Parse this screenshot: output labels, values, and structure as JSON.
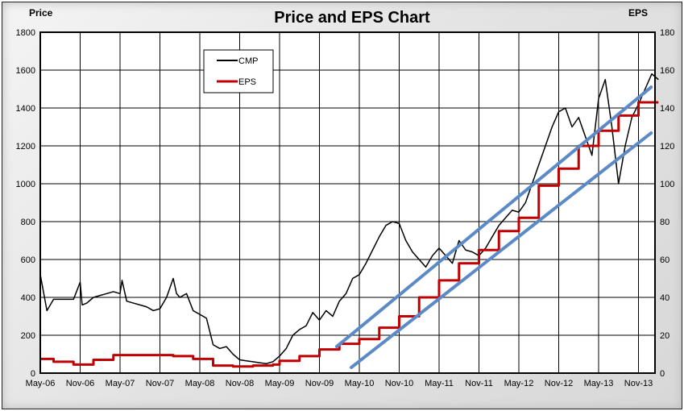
{
  "chart_data": {
    "type": "line",
    "title": "Price and EPS Chart",
    "ylabel_left": "Price",
    "ylabel_right": "EPS",
    "ylim_left": [
      0,
      1800
    ],
    "ylim_right": [
      0,
      180
    ],
    "yticks_left": [
      "0",
      "200",
      "400",
      "600",
      "800",
      "1000",
      "1200",
      "1400",
      "1600",
      "1800"
    ],
    "yticks_right": [
      "0",
      "20",
      "40",
      "60",
      "80",
      "100",
      "120",
      "140",
      "160",
      "180"
    ],
    "xticks": [
      "May-06",
      "Nov-06",
      "May-07",
      "Nov-07",
      "May-08",
      "Nov-08",
      "May-09",
      "Nov-09",
      "May-10",
      "Nov-10",
      "May-11",
      "Nov-11",
      "May-12",
      "Nov-12",
      "May-13",
      "Nov-13"
    ],
    "x_start": "May-06",
    "x_end": "Jan-14",
    "grid": true,
    "legend": "top-left",
    "series": [
      {
        "name": "CMP",
        "axis": "left",
        "color": "#000000",
        "x_months_from_start": [
          0,
          1,
          2,
          3,
          4,
          5,
          6,
          6.3,
          7,
          8,
          9,
          10,
          11,
          12,
          12.3,
          13,
          14,
          15,
          16,
          17,
          18,
          19,
          20,
          20.5,
          21,
          22,
          23,
          24,
          25,
          26,
          27,
          28,
          29,
          30,
          31,
          32,
          33,
          34,
          35,
          36,
          37,
          38,
          39,
          40,
          41,
          42,
          43,
          44,
          45,
          46,
          47,
          48,
          49,
          50,
          51,
          52,
          53,
          54,
          55,
          56,
          57,
          58,
          59,
          60,
          61,
          62,
          63,
          64,
          65,
          66,
          67,
          68,
          69,
          70,
          71,
          72,
          73,
          74,
          75,
          76,
          77,
          78,
          79,
          80,
          81,
          82,
          83,
          84,
          85,
          86,
          87,
          88,
          89,
          90,
          91,
          92,
          93
        ],
        "values": [
          520,
          330,
          390,
          390,
          390,
          390,
          480,
          360,
          370,
          400,
          410,
          420,
          430,
          420,
          490,
          380,
          370,
          360,
          350,
          330,
          340,
          400,
          500,
          420,
          400,
          420,
          330,
          310,
          290,
          150,
          130,
          140,
          100,
          70,
          65,
          60,
          55,
          50,
          60,
          90,
          130,
          200,
          230,
          250,
          320,
          280,
          330,
          300,
          380,
          420,
          500,
          520,
          580,
          650,
          720,
          780,
          800,
          790,
          700,
          640,
          600,
          560,
          620,
          660,
          620,
          580,
          700,
          650,
          640,
          620,
          660,
          720,
          780,
          820,
          860,
          850,
          900,
          1000,
          1100,
          1200,
          1300,
          1380,
          1400,
          1300,
          1350,
          1250,
          1150,
          1450,
          1550,
          1300,
          1000,
          1200,
          1350,
          1420,
          1500,
          1580,
          1550
        ]
      },
      {
        "name": "EPS",
        "axis": "right",
        "color": "#c00000",
        "step": true,
        "x_months_from_start": [
          0,
          2,
          5,
          8,
          11,
          20,
          23,
          26,
          29,
          32,
          35,
          36,
          39,
          42,
          45,
          48,
          51,
          54,
          57,
          60,
          63,
          66,
          69,
          72,
          75,
          78,
          81,
          84,
          87,
          90,
          93
        ],
        "values": [
          7.5,
          6,
          4.5,
          7,
          9.5,
          9,
          7.5,
          4,
          3.5,
          4,
          4.5,
          6.5,
          9,
          12.5,
          15.5,
          18,
          24,
          30,
          40,
          49,
          58,
          65,
          75,
          82,
          99,
          108,
          120,
          128,
          136,
          143,
          143
        ]
      }
    ],
    "trendlines": [
      {
        "color": "#5b8ac6",
        "from": [
          44.6,
          140
        ],
        "to": [
          91.9,
          1510
        ]
      },
      {
        "color": "#5b8ac6",
        "from": [
          46.8,
          30
        ],
        "to": [
          91.9,
          1268
        ]
      }
    ]
  }
}
